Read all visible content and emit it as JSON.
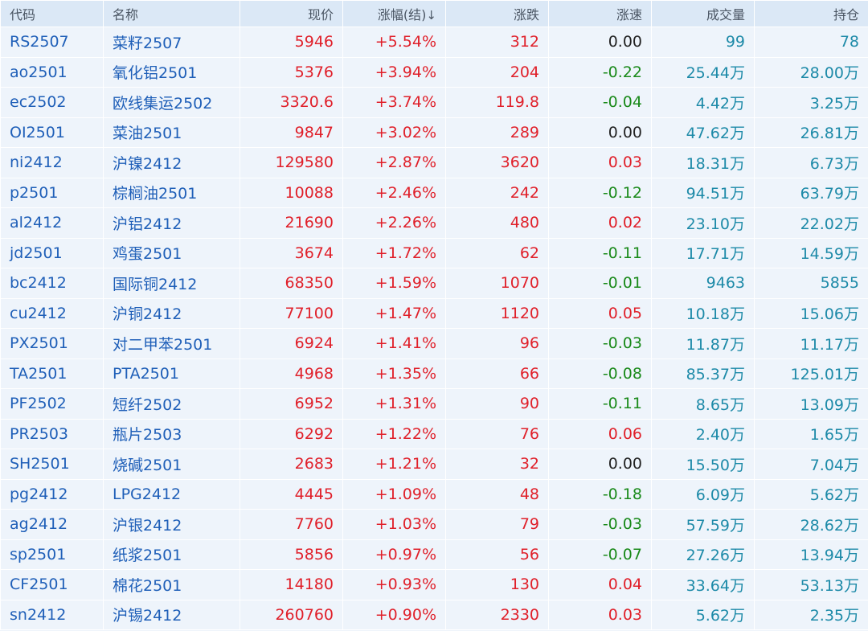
{
  "header": {
    "code": "代码",
    "name": "名称",
    "price": "现价",
    "change_pct": "涨幅(结)",
    "sort_arrow": "↓",
    "change_amt": "涨跌",
    "speed": "涨速",
    "volume": "成交量",
    "open_interest": "持仓"
  },
  "colors": {
    "up": "#e0202a",
    "down": "#1a8a1a",
    "code": "#1f5fb8",
    "volume": "#1d8aa8"
  },
  "rows": [
    {
      "code": "RS2507",
      "name": "菜籽2507",
      "price": "5946",
      "change_pct": "+5.54%",
      "change_amt": "312",
      "speed": "0.00",
      "volume": "99",
      "open_interest": "78"
    },
    {
      "code": "ao2501",
      "name": "氧化铝2501",
      "price": "5376",
      "change_pct": "+3.94%",
      "change_amt": "204",
      "speed": "-0.22",
      "volume": "25.44万",
      "open_interest": "28.00万"
    },
    {
      "code": "ec2502",
      "name": "欧线集运2502",
      "price": "3320.6",
      "change_pct": "+3.74%",
      "change_amt": "119.8",
      "speed": "-0.04",
      "volume": "4.42万",
      "open_interest": "3.25万"
    },
    {
      "code": "OI2501",
      "name": "菜油2501",
      "price": "9847",
      "change_pct": "+3.02%",
      "change_amt": "289",
      "speed": "0.00",
      "volume": "47.62万",
      "open_interest": "26.81万"
    },
    {
      "code": "ni2412",
      "name": "沪镍2412",
      "price": "129580",
      "change_pct": "+2.87%",
      "change_amt": "3620",
      "speed": "0.03",
      "volume": "18.31万",
      "open_interest": "6.73万"
    },
    {
      "code": "p2501",
      "name": "棕榈油2501",
      "price": "10088",
      "change_pct": "+2.46%",
      "change_amt": "242",
      "speed": "-0.12",
      "volume": "94.51万",
      "open_interest": "63.79万"
    },
    {
      "code": "al2412",
      "name": "沪铝2412",
      "price": "21690",
      "change_pct": "+2.26%",
      "change_amt": "480",
      "speed": "0.02",
      "volume": "23.10万",
      "open_interest": "22.02万"
    },
    {
      "code": "jd2501",
      "name": "鸡蛋2501",
      "price": "3674",
      "change_pct": "+1.72%",
      "change_amt": "62",
      "speed": "-0.11",
      "volume": "17.71万",
      "open_interest": "14.59万"
    },
    {
      "code": "bc2412",
      "name": "国际铜2412",
      "price": "68350",
      "change_pct": "+1.59%",
      "change_amt": "1070",
      "speed": "-0.01",
      "volume": "9463",
      "open_interest": "5855"
    },
    {
      "code": "cu2412",
      "name": "沪铜2412",
      "price": "77100",
      "change_pct": "+1.47%",
      "change_amt": "1120",
      "speed": "0.05",
      "volume": "10.18万",
      "open_interest": "15.06万"
    },
    {
      "code": "PX2501",
      "name": "对二甲苯2501",
      "price": "6924",
      "change_pct": "+1.41%",
      "change_amt": "96",
      "speed": "-0.03",
      "volume": "11.87万",
      "open_interest": "11.17万"
    },
    {
      "code": "TA2501",
      "name": "PTA2501",
      "price": "4968",
      "change_pct": "+1.35%",
      "change_amt": "66",
      "speed": "-0.08",
      "volume": "85.37万",
      "open_interest": "125.01万"
    },
    {
      "code": "PF2502",
      "name": "短纤2502",
      "price": "6952",
      "change_pct": "+1.31%",
      "change_amt": "90",
      "speed": "-0.11",
      "volume": "8.65万",
      "open_interest": "13.09万"
    },
    {
      "code": "PR2503",
      "name": "瓶片2503",
      "price": "6292",
      "change_pct": "+1.22%",
      "change_amt": "76",
      "speed": "0.06",
      "volume": "2.40万",
      "open_interest": "1.65万"
    },
    {
      "code": "SH2501",
      "name": "烧碱2501",
      "price": "2683",
      "change_pct": "+1.21%",
      "change_amt": "32",
      "speed": "0.00",
      "volume": "15.50万",
      "open_interest": "7.04万"
    },
    {
      "code": "pg2412",
      "name": "LPG2412",
      "price": "4445",
      "change_pct": "+1.09%",
      "change_amt": "48",
      "speed": "-0.18",
      "volume": "6.09万",
      "open_interest": "5.62万"
    },
    {
      "code": "ag2412",
      "name": "沪银2412",
      "price": "7760",
      "change_pct": "+1.03%",
      "change_amt": "79",
      "speed": "-0.03",
      "volume": "57.59万",
      "open_interest": "28.62万"
    },
    {
      "code": "sp2501",
      "name": "纸浆2501",
      "price": "5856",
      "change_pct": "+0.97%",
      "change_amt": "56",
      "speed": "-0.07",
      "volume": "27.26万",
      "open_interest": "13.94万"
    },
    {
      "code": "CF2501",
      "name": "棉花2501",
      "price": "14180",
      "change_pct": "+0.93%",
      "change_amt": "130",
      "speed": "0.04",
      "volume": "33.64万",
      "open_interest": "53.13万"
    },
    {
      "code": "sn2412",
      "name": "沪锡2412",
      "price": "260760",
      "change_pct": "+0.90%",
      "change_amt": "2330",
      "speed": "0.03",
      "volume": "5.62万",
      "open_interest": "2.35万"
    }
  ]
}
